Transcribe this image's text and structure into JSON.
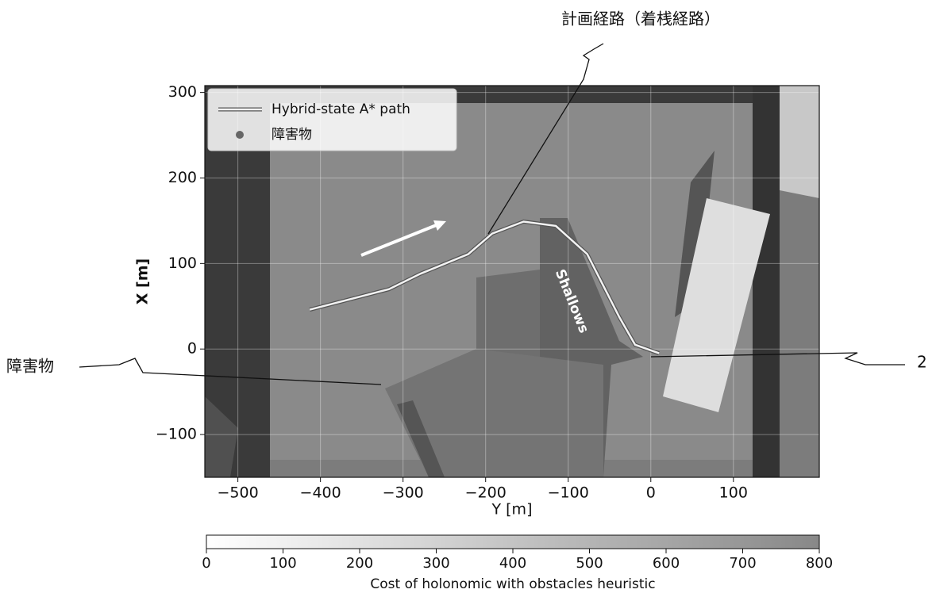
{
  "chart_data": {
    "type": "line",
    "x_label": "Y [m]",
    "y_label": "X [m]",
    "xlim": [
      -540,
      204
    ],
    "ylim": [
      -150,
      308
    ],
    "xticks": [
      {
        "value": -500,
        "label": "−500"
      },
      {
        "value": -400,
        "label": "−400"
      },
      {
        "value": -300,
        "label": "−300"
      },
      {
        "value": -200,
        "label": "−200"
      },
      {
        "value": -100,
        "label": "−100"
      },
      0,
      100
    ],
    "yticks": [
      {
        "value": -100,
        "label": "−100"
      },
      0,
      100,
      200,
      300
    ],
    "grid": true,
    "series": [
      {
        "name": "Hybrid-state A* path",
        "color": "#f2f2f2",
        "x": [
          -413,
          -317,
          -279,
          -221,
          -192,
          -154,
          -115,
          -77,
          -38,
          -19,
          10
        ],
        "values": [
          46,
          70,
          88,
          111,
          135,
          149,
          144,
          111,
          37,
          5,
          -5
        ]
      },
      {
        "name": "障害物",
        "color": "#666666",
        "x": [],
        "values": []
      }
    ],
    "colorbar": {
      "label": "Cost of holonomic with obstacles heuristic",
      "lim": [
        0,
        800
      ],
      "ticks": [
        0,
        100,
        200,
        300,
        400,
        500,
        600,
        700,
        800
      ]
    },
    "annotations": {
      "planned_path": "計画経路（着桟経路）",
      "obstacle": "障害物",
      "ref": "2",
      "shallows": "Shallows"
    }
  }
}
